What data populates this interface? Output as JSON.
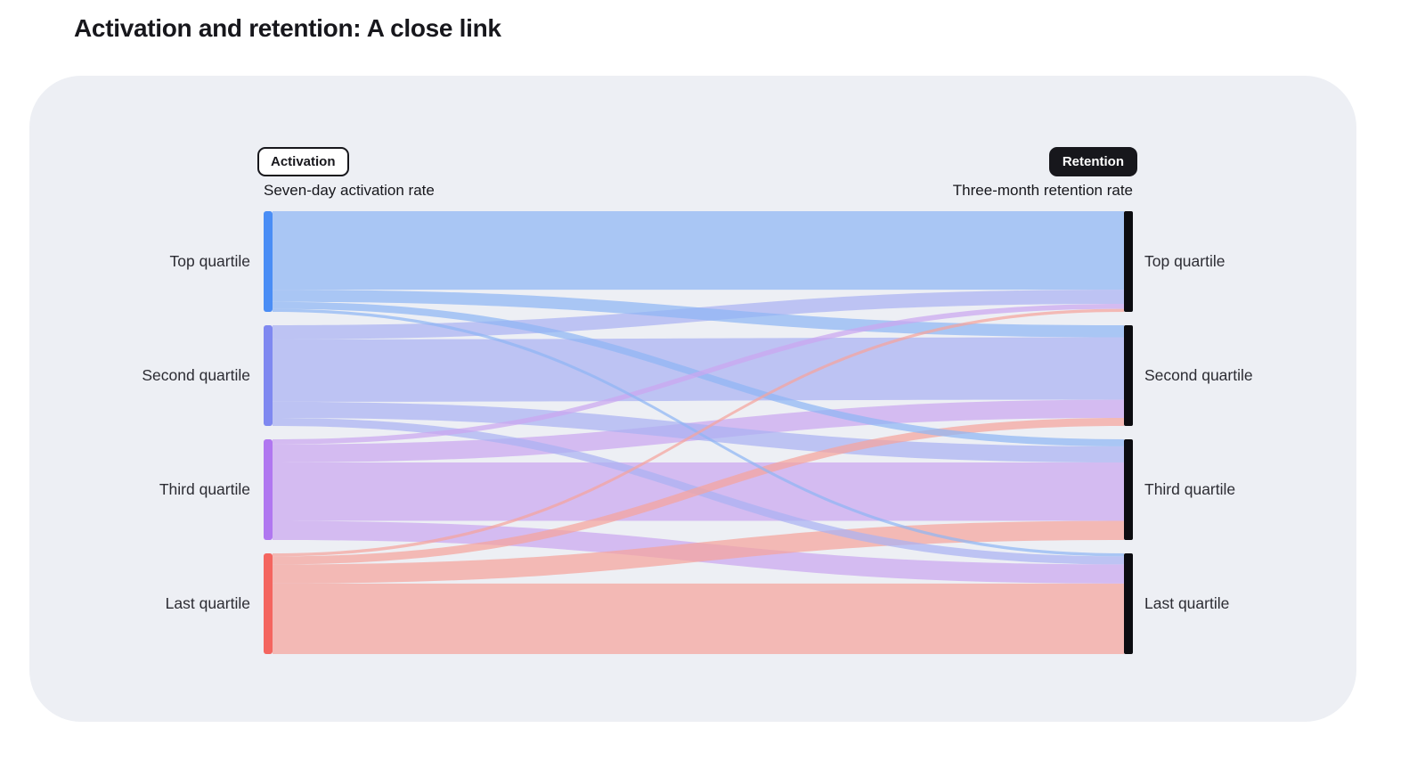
{
  "page": {
    "title": "Activation and retention: A close link"
  },
  "panel": {
    "activation_badge": "Activation",
    "activation_subtitle": "Seven-day activation rate",
    "retention_badge": "Retention",
    "retention_subtitle": "Three-month retention rate"
  },
  "colors": {
    "page_bg": "#ffffff",
    "card_bg": "#edeff4",
    "title_text": "#17171c",
    "label_text": "#2c2c33",
    "badge_dark_bg": "#17171c",
    "right_node": "#0c0c10"
  },
  "chart_data": {
    "type": "sankey",
    "title": "Activation and retention: A close link",
    "left_axis_label": "Seven-day activation rate",
    "right_axis_label": "Three-month retention rate",
    "left_nodes": [
      "Top quartile",
      "Second quartile",
      "Third quartile",
      "Last quartile"
    ],
    "right_nodes": [
      "Top quartile",
      "Second quartile",
      "Third quartile",
      "Last quartile"
    ],
    "node_colors_left": [
      "#4a8df5",
      "#7f88f0",
      "#b077f0",
      "#f4655f"
    ],
    "flow_colors": [
      "#8fb6f4",
      "#aab2f2",
      "#caa6f0",
      "#f5a49d"
    ],
    "flow_opacity": 0.72,
    "flows": [
      {
        "source": 0,
        "target": 0,
        "value": 78
      },
      {
        "source": 0,
        "target": 1,
        "value": 12
      },
      {
        "source": 0,
        "target": 2,
        "value": 7
      },
      {
        "source": 0,
        "target": 3,
        "value": 3
      },
      {
        "source": 1,
        "target": 0,
        "value": 14
      },
      {
        "source": 1,
        "target": 1,
        "value": 62
      },
      {
        "source": 1,
        "target": 2,
        "value": 16
      },
      {
        "source": 1,
        "target": 3,
        "value": 8
      },
      {
        "source": 2,
        "target": 0,
        "value": 5
      },
      {
        "source": 2,
        "target": 1,
        "value": 18
      },
      {
        "source": 2,
        "target": 2,
        "value": 58
      },
      {
        "source": 2,
        "target": 3,
        "value": 19
      },
      {
        "source": 3,
        "target": 0,
        "value": 3
      },
      {
        "source": 3,
        "target": 1,
        "value": 8
      },
      {
        "source": 3,
        "target": 2,
        "value": 19
      },
      {
        "source": 3,
        "target": 3,
        "value": 70
      }
    ]
  }
}
